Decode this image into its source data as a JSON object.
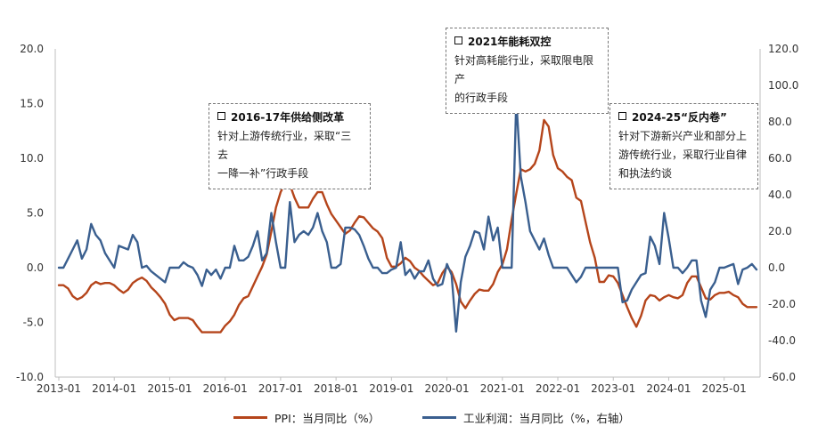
{
  "chart_data": {
    "type": "line",
    "x": [
      "2013-01",
      "2013-02",
      "2013-03",
      "2013-04",
      "2013-05",
      "2013-06",
      "2013-07",
      "2013-08",
      "2013-09",
      "2013-10",
      "2013-11",
      "2013-12",
      "2014-01",
      "2014-02",
      "2014-03",
      "2014-04",
      "2014-05",
      "2014-06",
      "2014-07",
      "2014-08",
      "2014-09",
      "2014-10",
      "2014-11",
      "2014-12",
      "2015-01",
      "2015-02",
      "2015-03",
      "2015-04",
      "2015-05",
      "2015-06",
      "2015-07",
      "2015-08",
      "2015-09",
      "2015-10",
      "2015-11",
      "2015-12",
      "2016-01",
      "2016-02",
      "2016-03",
      "2016-04",
      "2016-05",
      "2016-06",
      "2016-07",
      "2016-08",
      "2016-09",
      "2016-10",
      "2016-11",
      "2016-12",
      "2017-01",
      "2017-02",
      "2017-03",
      "2017-04",
      "2017-05",
      "2017-06",
      "2017-07",
      "2017-08",
      "2017-09",
      "2017-10",
      "2017-11",
      "2017-12",
      "2018-01",
      "2018-02",
      "2018-03",
      "2018-04",
      "2018-05",
      "2018-06",
      "2018-07",
      "2018-08",
      "2018-09",
      "2018-10",
      "2018-11",
      "2018-12",
      "2019-01",
      "2019-02",
      "2019-03",
      "2019-04",
      "2019-05",
      "2019-06",
      "2019-07",
      "2019-08",
      "2019-09",
      "2019-10",
      "2019-11",
      "2019-12",
      "2020-01",
      "2020-02",
      "2020-03",
      "2020-04",
      "2020-05",
      "2020-06",
      "2020-07",
      "2020-08",
      "2020-09",
      "2020-10",
      "2020-11",
      "2020-12",
      "2021-01",
      "2021-02",
      "2021-03",
      "2021-04",
      "2021-05",
      "2021-06",
      "2021-07",
      "2021-08",
      "2021-09",
      "2021-10",
      "2021-11",
      "2021-12",
      "2022-01",
      "2022-02",
      "2022-03",
      "2022-04",
      "2022-05",
      "2022-06",
      "2022-07",
      "2022-08",
      "2022-09",
      "2022-10",
      "2022-11",
      "2022-12",
      "2023-01",
      "2023-02",
      "2023-03",
      "2023-04",
      "2023-05",
      "2023-06",
      "2023-07",
      "2023-08",
      "2023-09",
      "2023-10",
      "2023-11",
      "2023-12",
      "2024-01",
      "2024-02",
      "2024-03",
      "2024-04",
      "2024-05",
      "2024-06",
      "2024-07",
      "2024-08",
      "2024-09",
      "2024-10",
      "2024-11",
      "2024-12",
      "2025-01",
      "2025-02",
      "2025-03",
      "2025-04",
      "2025-05",
      "2025-06",
      "2025-07",
      "2025-08"
    ],
    "xticks": [
      "2013-01",
      "2014-01",
      "2015-01",
      "2016-01",
      "2017-01",
      "2018-01",
      "2019-01",
      "2020-01",
      "2021-01",
      "2022-01",
      "2023-01",
      "2024-01",
      "2025-01"
    ],
    "yticks_left": [
      "20.0",
      "15.0",
      "10.0",
      "5.0",
      "0.0",
      "-5.0",
      "-10.0"
    ],
    "yticks_right": [
      "120.0",
      "100.0",
      "80.0",
      "60.0",
      "40.0",
      "20.0",
      "0.0",
      "-20.0",
      "-40.0",
      "-60.0"
    ],
    "ylim_left": [
      -10,
      20
    ],
    "ylim_right": [
      -60,
      120
    ],
    "grid": false,
    "legend_position": "bottom",
    "series": [
      {
        "name": "PPI：当月同比（%）",
        "axis": "left",
        "color": "#B5451B",
        "values": [
          -1.6,
          -1.6,
          -1.9,
          -2.6,
          -2.9,
          -2.7,
          -2.3,
          -1.6,
          -1.3,
          -1.5,
          -1.4,
          -1.4,
          -1.6,
          -2.0,
          -2.3,
          -2.0,
          -1.4,
          -1.1,
          -0.9,
          -1.2,
          -1.8,
          -2.2,
          -2.7,
          -3.3,
          -4.3,
          -4.8,
          -4.6,
          -4.6,
          -4.6,
          -4.8,
          -5.4,
          -5.9,
          -5.9,
          -5.9,
          -5.9,
          -5.9,
          -5.3,
          -4.9,
          -4.3,
          -3.4,
          -2.8,
          -2.6,
          -1.7,
          -0.8,
          0.1,
          1.2,
          3.3,
          5.5,
          6.9,
          7.8,
          7.6,
          6.4,
          5.5,
          5.5,
          5.5,
          6.3,
          6.9,
          6.9,
          5.8,
          4.9,
          4.3,
          3.7,
          3.1,
          3.4,
          4.1,
          4.7,
          4.6,
          4.1,
          3.6,
          3.3,
          2.7,
          0.9,
          0.1,
          0.1,
          0.4,
          0.9,
          0.6,
          0.0,
          -0.3,
          -0.8,
          -1.2,
          -1.6,
          -1.4,
          -0.5,
          0.1,
          -0.4,
          -1.5,
          -3.1,
          -3.7,
          -3.0,
          -2.4,
          -2.0,
          -2.1,
          -2.1,
          -1.5,
          -0.4,
          0.3,
          1.7,
          4.4,
          6.8,
          9.0,
          8.8,
          9.0,
          9.5,
          10.7,
          13.5,
          12.9,
          10.3,
          9.1,
          8.8,
          8.3,
          8.0,
          6.4,
          6.1,
          4.2,
          2.3,
          0.9,
          -1.3,
          -1.3,
          -0.7,
          -0.8,
          -1.4,
          -2.5,
          -3.6,
          -4.6,
          -5.4,
          -4.4,
          -3.0,
          -2.5,
          -2.6,
          -3.0,
          -2.7,
          -2.5,
          -2.7,
          -2.8,
          -2.5,
          -1.4,
          -0.8,
          -0.8,
          -1.8,
          -2.8,
          -2.9,
          -2.5,
          -2.3,
          -2.3,
          -2.2,
          -2.5,
          -2.7,
          -3.3,
          -3.6,
          -3.6,
          -3.6
        ]
      },
      {
        "name": "工业利润：当月同比（%，右轴）",
        "axis": "right",
        "color": "#3A5F8F",
        "values": [
          0,
          0,
          5,
          10,
          15,
          5,
          10,
          24,
          18,
          15,
          8,
          4,
          0,
          12,
          11,
          10,
          18,
          14,
          0,
          1,
          -2,
          -4,
          -6,
          -8,
          0,
          0,
          0,
          3,
          1,
          0,
          -4,
          -10,
          -1,
          -4,
          -1,
          -6,
          0,
          0,
          12,
          4,
          4,
          6,
          12,
          20,
          4,
          8,
          30,
          14,
          0,
          0,
          36,
          14,
          18,
          20,
          18,
          22,
          30,
          20,
          14,
          0,
          0,
          2,
          22,
          22,
          21,
          18,
          12,
          5,
          0,
          0,
          -3,
          -3,
          -1,
          0,
          14,
          -4,
          -1,
          -6,
          -2,
          -2,
          4,
          -6,
          -10,
          -9,
          2,
          -4,
          -35,
          -8,
          6,
          12,
          20,
          19,
          10,
          28,
          15,
          22,
          0,
          0,
          0,
          92,
          50,
          36,
          20,
          15,
          10,
          16,
          7,
          0,
          0,
          0,
          0,
          -4,
          -8,
          -5,
          0,
          0,
          0,
          0,
          0,
          0,
          0,
          0,
          -19,
          -18,
          -12,
          -8,
          -4,
          -3,
          17,
          12,
          2,
          30,
          16,
          0,
          0,
          -3,
          0,
          4,
          4,
          -18,
          -27,
          -12,
          -8,
          0,
          0,
          1,
          2,
          -9,
          -1,
          0,
          2,
          -1
        ]
      }
    ],
    "annotations": [
      {
        "title": "2016-17年供给侧改革",
        "lines": [
          "针对上游传统行业，采取“三去",
          "一降一补”行政手段"
        ]
      },
      {
        "title": "2021年能耗双控",
        "lines": [
          "针对高耗能行业，采取限电限产",
          "的行政手段"
        ]
      },
      {
        "title": "2024-25“反内卷”",
        "lines": [
          "针对下游新兴产业和部分上",
          "游传统行业，采取行业自律",
          "和执法约谈"
        ]
      }
    ]
  }
}
